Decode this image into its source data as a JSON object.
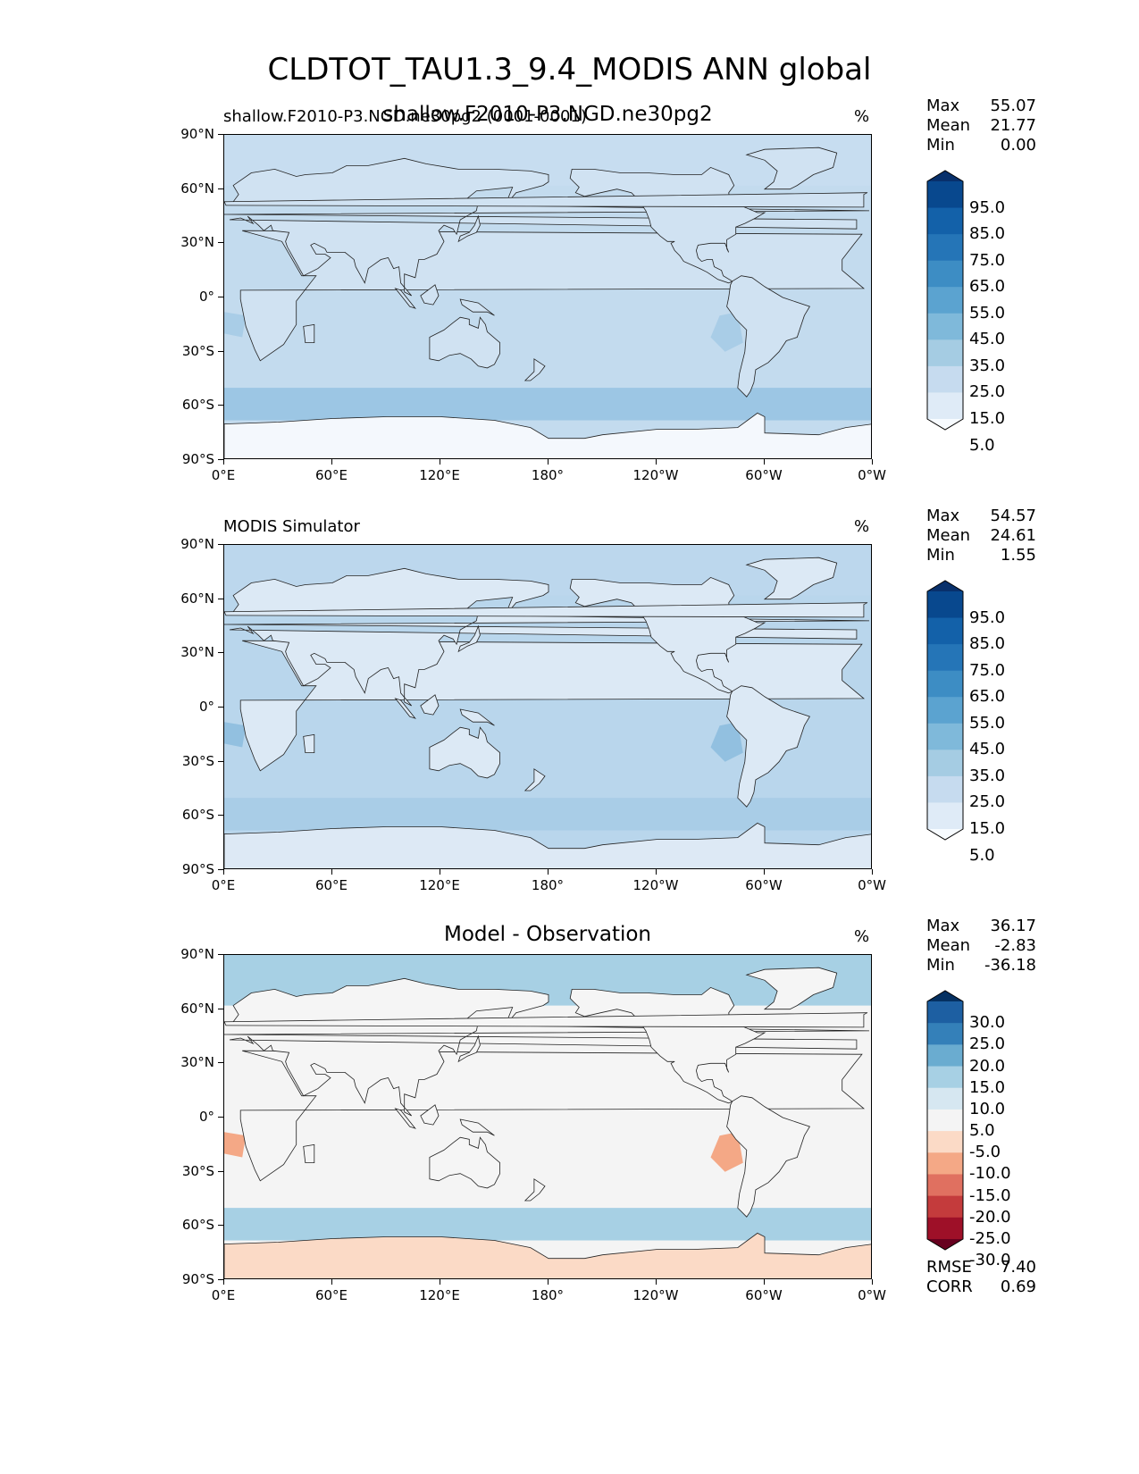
{
  "title": "CLDTOT_TAU1.3_9.4_MODIS ANN global",
  "panels": [
    {
      "left_title": "shallow.F2010-P3.NGD.ne30pg2 (0001-0001)",
      "center_title": "shallow.F2010-P3.NGD.ne30pg2",
      "unit": "%",
      "stats": [
        {
          "label": "Max",
          "value": "55.07"
        },
        {
          "label": "Mean",
          "value": "21.77"
        },
        {
          "label": "Min",
          "value": "0.00"
        }
      ],
      "colorbar": {
        "ticks": [
          "95.0",
          "85.0",
          "75.0",
          "65.0",
          "55.0",
          "45.0",
          "35.0",
          "25.0",
          "15.0",
          "5.0"
        ],
        "colors": [
          "#08306b",
          "#08488e",
          "#1361a9",
          "#2575b7",
          "#3d8dc4",
          "#5ba3d0",
          "#7fb9da",
          "#a5cce3",
          "#c6dbef",
          "#dfebf7",
          "#f7fbff"
        ],
        "extend": "both"
      },
      "fill": {
        "land": "#d0e2f2",
        "ocean": "#c3dbee",
        "arctic": "#c7ddf0",
        "south_band": "#9cc6e4",
        "antarctic": "#f4f8fd",
        "stratus": "#a9cde7"
      }
    },
    {
      "left_title": "MODIS Simulator",
      "center_title": "",
      "unit": "%",
      "stats": [
        {
          "label": "Max",
          "value": "54.57"
        },
        {
          "label": "Mean",
          "value": "24.61"
        },
        {
          "label": "Min",
          "value": "1.55"
        }
      ],
      "colorbar": {
        "ticks": [
          "95.0",
          "85.0",
          "75.0",
          "65.0",
          "55.0",
          "45.0",
          "35.0",
          "25.0",
          "15.0",
          "5.0"
        ],
        "colors": [
          "#08306b",
          "#08488e",
          "#1361a9",
          "#2575b7",
          "#3d8dc4",
          "#5ba3d0",
          "#7fb9da",
          "#a5cce3",
          "#c6dbef",
          "#dfebf7",
          "#f7fbff"
        ],
        "extend": "both"
      },
      "fill": {
        "land": "#dce9f5",
        "ocean": "#b9d6ec",
        "arctic": "#bcd7ed",
        "south_band": "#a9cde7",
        "antarctic": "#dde9f5",
        "stratus": "#92c0e0"
      }
    },
    {
      "left_title": "",
      "center_title": "Model - Observation",
      "unit": "%",
      "stats": [
        {
          "label": "Max",
          "value": "36.17"
        },
        {
          "label": "Mean",
          "value": "-2.83"
        },
        {
          "label": "Min",
          "value": "-36.18"
        }
      ],
      "colorbar": {
        "ticks": [
          "30.0",
          "25.0",
          "20.0",
          "15.0",
          "10.0",
          "5.0",
          "-5.0",
          "-10.0",
          "-15.0",
          "-20.0",
          "-25.0",
          "-30.0"
        ],
        "colors": [
          "#053061",
          "#1d5fa2",
          "#3480b9",
          "#6aacd0",
          "#a7d0e4",
          "#d6e7f1",
          "#f4f4f4",
          "#fbdac6",
          "#f4a886",
          "#e07060",
          "#c43b3c",
          "#9e1028",
          "#67001f"
        ],
        "extend": "both"
      },
      "fill": {
        "land": "#f5f5f5",
        "ocean": "#f4f4f4",
        "arctic": "#a7d0e4",
        "south_band": "#a7d0e4",
        "antarctic": "#fbdac6",
        "stratus": "#f4a886"
      }
    }
  ],
  "diff_metrics": [
    {
      "label": "RMSE",
      "value": "7.40"
    },
    {
      "label": "CORR",
      "value": "0.69"
    }
  ],
  "axes": {
    "yticks": [
      "90°N",
      "60°N",
      "30°N",
      "0°",
      "30°S",
      "60°S",
      "90°S"
    ],
    "xticks": [
      "0°E",
      "60°E",
      "120°E",
      "180°",
      "120°W",
      "60°W",
      "0°W"
    ]
  },
  "chart_data": [
    {
      "type": "heatmap",
      "title": "CLDTOT_TAU1.3_9.4_MODIS ANN global",
      "subtitle": "shallow.F2010-P3.NGD.ne30pg2 (0001-0001)",
      "units": "%",
      "max": 55.07,
      "mean": 21.77,
      "min": 0.0,
      "levels": [
        5,
        15,
        25,
        35,
        45,
        55,
        65,
        75,
        85,
        95
      ],
      "xlim": [
        0,
        360
      ],
      "ylim": [
        -90,
        90
      ]
    },
    {
      "type": "heatmap",
      "subtitle": "MODIS Simulator",
      "units": "%",
      "max": 54.57,
      "mean": 24.61,
      "min": 1.55,
      "levels": [
        5,
        15,
        25,
        35,
        45,
        55,
        65,
        75,
        85,
        95
      ],
      "xlim": [
        0,
        360
      ],
      "ylim": [
        -90,
        90
      ]
    },
    {
      "type": "heatmap",
      "title": "Model - Observation",
      "units": "%",
      "max": 36.17,
      "mean": -2.83,
      "min": -36.18,
      "rmse": 7.4,
      "corr": 0.69,
      "levels": [
        -30,
        -25,
        -20,
        -15,
        -10,
        -5,
        5,
        10,
        15,
        20,
        25,
        30
      ],
      "xlim": [
        0,
        360
      ],
      "ylim": [
        -90,
        90
      ]
    }
  ]
}
